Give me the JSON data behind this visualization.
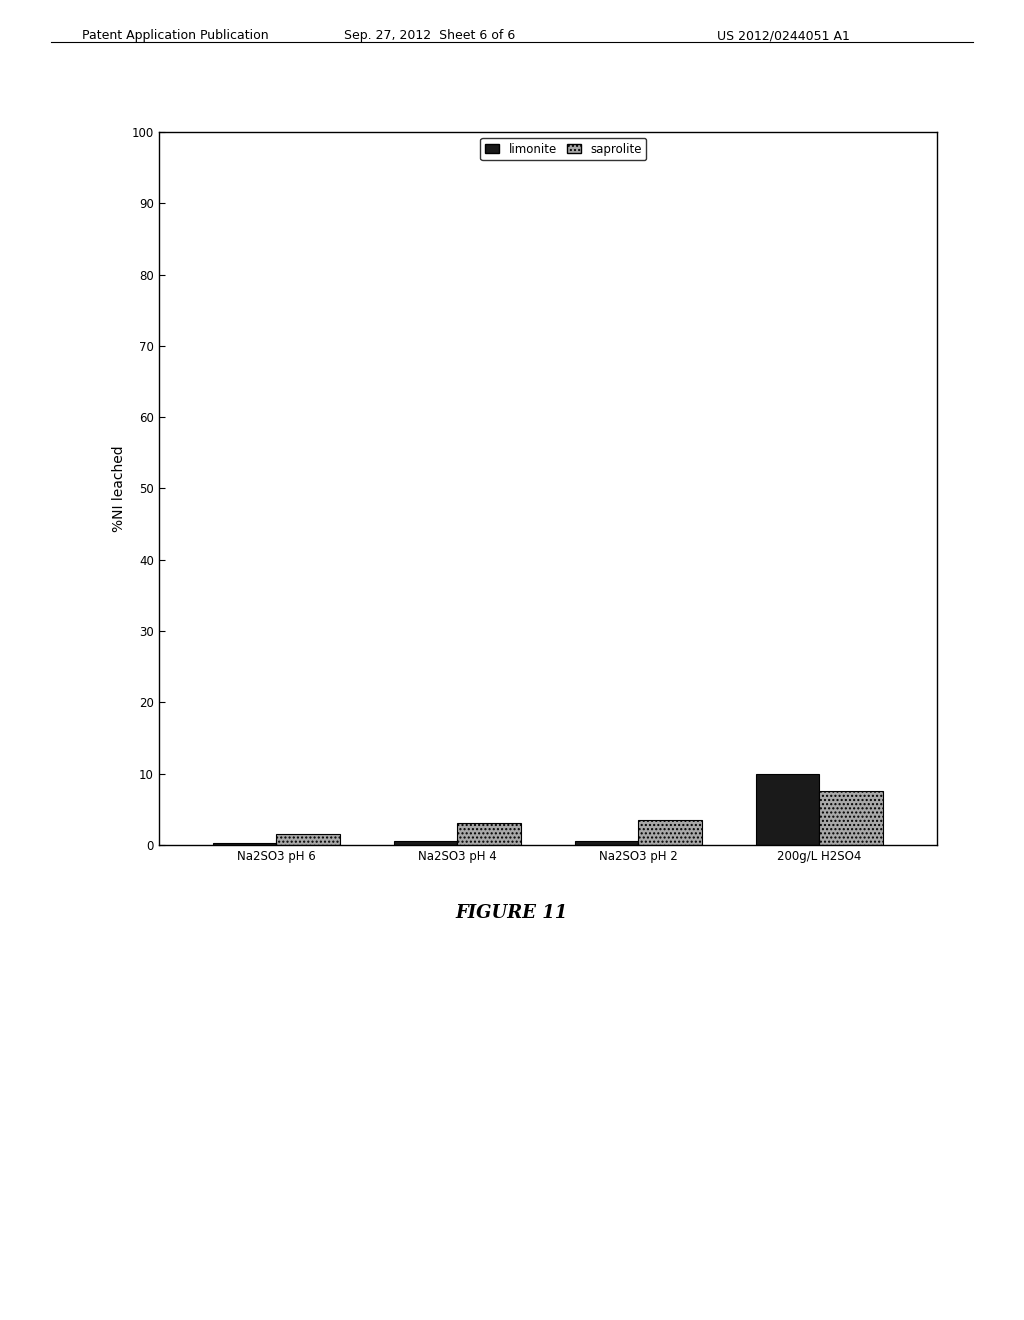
{
  "categories": [
    "Na2SO3 pH 6",
    "Na2SO3 pH 4",
    "Na2SO3 pH 2",
    "200g/L H2SO4"
  ],
  "limonite_values": [
    0.2,
    0.5,
    0.5,
    10.0
  ],
  "saprolite_values": [
    1.5,
    3.0,
    3.5,
    7.5
  ],
  "ylabel": "%NI leached",
  "ylim": [
    0,
    100
  ],
  "yticks": [
    0,
    10,
    20,
    30,
    40,
    50,
    60,
    70,
    80,
    90,
    100
  ],
  "legend_labels": [
    "limonite",
    "saprolite"
  ],
  "limonite_color": "#1a1a1a",
  "saprolite_color": "#b0b0b0",
  "bar_width": 0.35,
  "figure_title": "FIGURE 11",
  "header_left": "Patent Application Publication",
  "header_mid": "Sep. 27, 2012  Sheet 6 of 6",
  "header_right": "US 2012/0244051 A1",
  "background_color": "#ffffff",
  "chart_bg": "#ffffff",
  "border_color": "#000000"
}
